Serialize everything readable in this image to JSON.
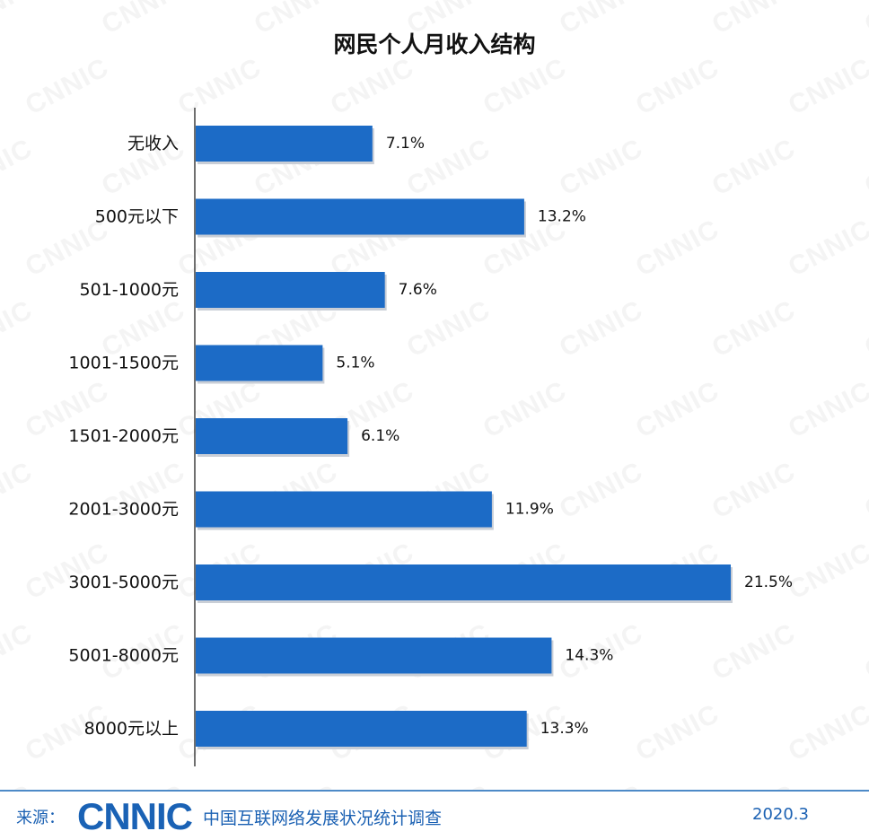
{
  "chart_data": {
    "type": "bar",
    "orientation": "horizontal",
    "title": "网民个人月收入结构",
    "categories": [
      "无收入",
      "500元以下",
      "501-1000元",
      "1001-1500元",
      "1501-2000元",
      "2001-3000元",
      "3001-5000元",
      "5001-8000元",
      "8000元以上"
    ],
    "values": [
      7.1,
      13.2,
      7.6,
      5.1,
      6.1,
      11.9,
      21.5,
      14.3,
      13.3
    ],
    "data_labels": [
      "7.1%",
      "13.2%",
      "7.6%",
      "5.1%",
      "6.1%",
      "11.9%",
      "21.5%",
      "14.3%",
      "13.3%"
    ],
    "xlim": [
      0,
      21.5
    ],
    "grid": false,
    "bar_color": "#1c6bc6"
  },
  "watermark": "CNNIC",
  "footer": {
    "source_label": "来源：",
    "logo": "CNNIC",
    "organization": "中国互联网络发展状况统计调查",
    "date": "2020.3"
  }
}
